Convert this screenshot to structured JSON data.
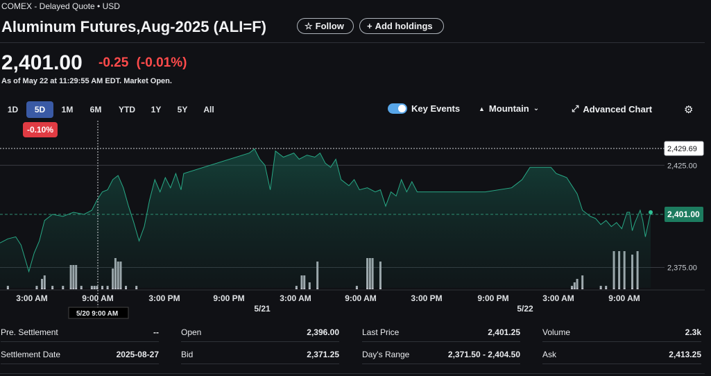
{
  "header": {
    "exchange_line": "COMEX - Delayed Quote • USD",
    "title": "Aluminum Futures,Aug-2025 (ALI=F)",
    "follow_label": "Follow",
    "add_holdings_label": "Add holdings"
  },
  "quote": {
    "price": "2,401.00",
    "change": "-0.25",
    "change_pct": "(-0.01%)",
    "as_of": "As of May 22 at 11:29:55 AM EDT. Market Open."
  },
  "ranges": [
    "1D",
    "5D",
    "1M",
    "6M",
    "YTD",
    "1Y",
    "5Y",
    "All"
  ],
  "active_range": "5D",
  "range_change_badge": "-0.10%",
  "toolbar": {
    "key_events_label": "Key Events",
    "chart_type_label": "Mountain",
    "advanced_chart_label": "Advanced Chart"
  },
  "chart_data": {
    "type": "area",
    "y_ticks": [
      "2,425.00",
      "2,375.00"
    ],
    "last_price_label": "2,401.00",
    "crosshair_price_label": "2,429.69",
    "crosshair_time_label": "5/20 9:00 AM",
    "x_tick_labels": [
      "3:00 AM",
      "9:00 AM",
      "3:00 PM",
      "9:00 PM",
      "3:00 AM",
      "9:00 AM",
      "3:00 PM",
      "9:00 PM",
      "3:00 AM",
      "9:00 AM"
    ],
    "date_labels": [
      "5/21",
      "5/22"
    ],
    "ylim": [
      2365,
      2438
    ],
    "series": [
      {
        "points": [
          [
            0,
            2387
          ],
          [
            3,
            2389
          ],
          [
            6,
            2390
          ],
          [
            8,
            2386
          ],
          [
            11,
            2373
          ],
          [
            13,
            2382
          ],
          [
            15,
            2388
          ],
          [
            17,
            2398
          ],
          [
            20,
            2401
          ],
          [
            24,
            2400
          ],
          [
            28,
            2402
          ],
          [
            32,
            2401
          ],
          [
            35,
            2403
          ],
          [
            37,
            2408
          ],
          [
            39,
            2412
          ],
          [
            41,
            2413
          ],
          [
            43,
            2418
          ],
          [
            45,
            2420
          ],
          [
            47,
            2414
          ],
          [
            49,
            2405
          ],
          [
            51,
            2397
          ],
          [
            53,
            2388
          ],
          [
            55,
            2395
          ],
          [
            57,
            2408
          ],
          [
            59,
            2418
          ],
          [
            61,
            2412
          ],
          [
            63,
            2419
          ],
          [
            65,
            2414
          ],
          [
            67,
            2421
          ],
          [
            69,
            2413
          ],
          [
            70,
            2421
          ],
          [
            95,
            2431
          ],
          [
            97,
            2433
          ],
          [
            99,
            2428
          ],
          [
            101,
            2425
          ],
          [
            103,
            2413
          ],
          [
            105,
            2432
          ],
          [
            108,
            2429
          ],
          [
            112,
            2431
          ],
          [
            114,
            2428
          ],
          [
            117,
            2430
          ],
          [
            120,
            2429
          ],
          [
            122,
            2431
          ],
          [
            124,
            2426
          ],
          [
            126,
            2424
          ],
          [
            128,
            2428
          ],
          [
            130,
            2418
          ],
          [
            133,
            2415
          ],
          [
            135,
            2418
          ],
          [
            137,
            2413
          ],
          [
            140,
            2414
          ],
          [
            143,
            2412
          ],
          [
            145,
            2413
          ],
          [
            147,
            2405
          ],
          [
            149,
            2412
          ],
          [
            151,
            2410
          ],
          [
            153,
            2418
          ],
          [
            155,
            2412
          ],
          [
            157,
            2417
          ],
          [
            159,
            2412
          ],
          [
            170,
            2412
          ],
          [
            185,
            2412
          ],
          [
            195,
            2414
          ],
          [
            197,
            2416
          ],
          [
            199,
            2418
          ],
          [
            202,
            2424
          ],
          [
            205,
            2424
          ],
          [
            208,
            2424
          ],
          [
            210,
            2424
          ],
          [
            212,
            2421
          ],
          [
            214,
            2420
          ],
          [
            216,
            2419
          ],
          [
            218,
            2415
          ],
          [
            220,
            2411
          ],
          [
            222,
            2403
          ],
          [
            225,
            2400
          ],
          [
            227,
            2399
          ],
          [
            229,
            2396
          ],
          [
            231,
            2398
          ],
          [
            233,
            2395
          ],
          [
            235,
            2397
          ],
          [
            237,
            2394
          ],
          [
            239,
            2402
          ],
          [
            240,
            2402
          ],
          [
            241,
            2393
          ],
          [
            242,
            2397
          ],
          [
            244,
            2403
          ],
          [
            245,
            2398
          ],
          [
            246,
            2390
          ],
          [
            247,
            2396
          ],
          [
            248,
            2402
          ]
        ]
      }
    ],
    "volume_bars": [
      [
        3,
        1
      ],
      [
        14,
        1
      ],
      [
        16,
        3
      ],
      [
        17,
        4
      ],
      [
        20,
        1
      ],
      [
        24,
        1
      ],
      [
        27,
        7
      ],
      [
        28,
        7
      ],
      [
        29,
        7
      ],
      [
        31,
        1
      ],
      [
        35,
        1
      ],
      [
        36,
        1
      ],
      [
        37,
        1
      ],
      [
        39,
        1
      ],
      [
        41,
        1
      ],
      [
        43,
        6
      ],
      [
        44,
        9
      ],
      [
        45,
        8
      ],
      [
        46,
        8
      ],
      [
        48,
        1
      ],
      [
        52,
        1
      ],
      [
        113,
        1
      ],
      [
        115,
        4
      ],
      [
        116,
        4
      ],
      [
        118,
        2
      ],
      [
        121,
        8
      ],
      [
        136,
        1
      ],
      [
        140,
        9
      ],
      [
        141,
        9
      ],
      [
        142,
        9
      ],
      [
        145,
        8
      ],
      [
        218,
        1
      ],
      [
        219,
        2
      ],
      [
        220,
        3
      ],
      [
        222,
        4
      ],
      [
        229,
        1
      ],
      [
        231,
        1
      ],
      [
        234,
        11
      ],
      [
        236,
        11
      ],
      [
        238,
        11
      ],
      [
        241,
        10
      ],
      [
        243,
        11
      ]
    ]
  },
  "stats": [
    {
      "label": "Pre. Settlement",
      "value": "--"
    },
    {
      "label": "Settlement Date",
      "value": "2025-08-27"
    },
    {
      "label": "Open",
      "value": "2,396.00"
    },
    {
      "label": "Bid",
      "value": "2,371.25"
    },
    {
      "label": "Last Price",
      "value": "2,401.25"
    },
    {
      "label": "Day's Range",
      "value": "2,371.50 - 2,404.50"
    },
    {
      "label": "Volume",
      "value": "2.3k"
    },
    {
      "label": "Ask",
      "value": "2,413.25"
    }
  ]
}
